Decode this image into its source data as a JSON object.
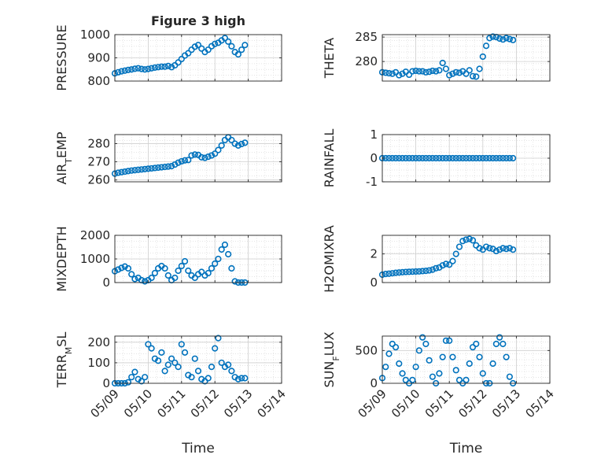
{
  "figure_title": "Figure 3 high",
  "x_axis": {
    "tick_labels": [
      "05/09",
      "05/10",
      "05/11",
      "05/12",
      "05/13",
      "05/14"
    ],
    "label": "Time"
  },
  "marker_color": "#0072BD",
  "chart_data": [
    {
      "type": "scatter",
      "id": "pressure",
      "title": "Figure 3 high",
      "ylabel": "PRESSURE",
      "ylabel_sub": "",
      "ylabel_tail": "",
      "xlim": [
        0,
        5
      ],
      "ylim": [
        800,
        1000
      ],
      "yticks": [
        800,
        900,
        1000
      ],
      "ytick_labels": [
        "800",
        "900",
        "1000"
      ],
      "grid": true,
      "series": [
        {
          "x": [
            0,
            0.1,
            0.2,
            0.3,
            0.4,
            0.5,
            0.6,
            0.7,
            0.8,
            0.9,
            1.0,
            1.1,
            1.2,
            1.3,
            1.4,
            1.5,
            1.6,
            1.7,
            1.8,
            1.9,
            2.0,
            2.1,
            2.2,
            2.3,
            2.4,
            2.5,
            2.6,
            2.7,
            2.8,
            2.9,
            3.0,
            3.1,
            3.2,
            3.3,
            3.4,
            3.5,
            3.6,
            3.7,
            3.8,
            3.9
          ],
          "y": [
            833,
            838,
            842,
            845,
            848,
            850,
            853,
            855,
            852,
            850,
            852,
            855,
            858,
            860,
            862,
            862,
            865,
            860,
            868,
            880,
            895,
            910,
            920,
            935,
            948,
            955,
            940,
            925,
            935,
            950,
            960,
            965,
            975,
            985,
            970,
            950,
            925,
            915,
            935,
            955
          ]
        }
      ]
    },
    {
      "type": "scatter",
      "id": "theta",
      "title": "",
      "ylabel": "THETA",
      "ylabel_sub": "",
      "ylabel_tail": "",
      "xlim": [
        0,
        5
      ],
      "ylim": [
        276,
        285.5
      ],
      "yticks": [
        280,
        285
      ],
      "ytick_labels": [
        "280",
        "285"
      ],
      "grid": true,
      "series": [
        {
          "x": [
            0,
            0.1,
            0.2,
            0.3,
            0.4,
            0.5,
            0.6,
            0.7,
            0.8,
            0.9,
            1.0,
            1.1,
            1.2,
            1.3,
            1.4,
            1.5,
            1.6,
            1.7,
            1.8,
            1.9,
            2.0,
            2.1,
            2.2,
            2.3,
            2.4,
            2.5,
            2.6,
            2.7,
            2.8,
            2.9,
            3.0,
            3.1,
            3.2,
            3.3,
            3.4,
            3.5,
            3.6,
            3.7,
            3.8,
            3.9
          ],
          "y": [
            277.8,
            277.7,
            277.6,
            277.5,
            277.8,
            277.2,
            277.5,
            277.9,
            277.3,
            278.0,
            278.1,
            278.0,
            278.0,
            277.8,
            277.9,
            278.1,
            278.0,
            278.2,
            279.7,
            278.5,
            277.2,
            277.5,
            277.8,
            277.7,
            278.0,
            277.5,
            278.2,
            277.0,
            276.9,
            278.5,
            281.0,
            283.2,
            284.8,
            285.1,
            285.0,
            284.7,
            284.5,
            284.8,
            284.6,
            284.4
          ]
        }
      ]
    },
    {
      "type": "scatter",
      "id": "air_temp",
      "title": "",
      "ylabel": "AIR",
      "ylabel_sub": "T",
      "ylabel_tail": "EMP",
      "xlim": [
        0,
        5
      ],
      "ylim": [
        259,
        285
      ],
      "yticks": [
        260,
        270,
        280
      ],
      "ytick_labels": [
        "260",
        "270",
        "280"
      ],
      "grid": true,
      "series": [
        {
          "x": [
            0,
            0.1,
            0.2,
            0.3,
            0.4,
            0.5,
            0.6,
            0.7,
            0.8,
            0.9,
            1.0,
            1.1,
            1.2,
            1.3,
            1.4,
            1.5,
            1.6,
            1.7,
            1.8,
            1.9,
            2.0,
            2.1,
            2.2,
            2.3,
            2.4,
            2.5,
            2.6,
            2.7,
            2.8,
            2.9,
            3.0,
            3.1,
            3.2,
            3.3,
            3.4,
            3.5,
            3.6,
            3.7,
            3.8,
            3.9
          ],
          "y": [
            263.5,
            264.0,
            264.3,
            264.6,
            264.9,
            265.2,
            265.4,
            265.6,
            265.8,
            266.0,
            266.2,
            266.4,
            266.6,
            266.8,
            267.0,
            267.2,
            267.4,
            267.6,
            268.5,
            269.5,
            270.3,
            270.8,
            271.0,
            273.5,
            274.0,
            273.8,
            272.5,
            272.2,
            272.8,
            273.5,
            274.5,
            276.5,
            279.0,
            282.0,
            283.5,
            282.0,
            280.0,
            279.0,
            279.8,
            280.5
          ]
        }
      ]
    },
    {
      "type": "scatter",
      "id": "rainfall",
      "title": "",
      "ylabel": "RAINFALL",
      "ylabel_sub": "",
      "ylabel_tail": "",
      "xlim": [
        0,
        5
      ],
      "ylim": [
        -1,
        1
      ],
      "yticks": [
        -1,
        0,
        1
      ],
      "ytick_labels": [
        "-1",
        "0",
        "1"
      ],
      "grid": true,
      "series": [
        {
          "x": [
            0,
            0.1,
            0.2,
            0.3,
            0.4,
            0.5,
            0.6,
            0.7,
            0.8,
            0.9,
            1.0,
            1.1,
            1.2,
            1.3,
            1.4,
            1.5,
            1.6,
            1.7,
            1.8,
            1.9,
            2.0,
            2.1,
            2.2,
            2.3,
            2.4,
            2.5,
            2.6,
            2.7,
            2.8,
            2.9,
            3.0,
            3.1,
            3.2,
            3.3,
            3.4,
            3.5,
            3.6,
            3.7,
            3.8,
            3.9
          ],
          "y": [
            0,
            0,
            0,
            0,
            0,
            0,
            0,
            0,
            0,
            0,
            0,
            0,
            0,
            0,
            0,
            0,
            0,
            0,
            0,
            0,
            0,
            0,
            0,
            0,
            0,
            0,
            0,
            0,
            0,
            0,
            0,
            0,
            0,
            0,
            0,
            0,
            0,
            0,
            0,
            0
          ]
        }
      ]
    },
    {
      "type": "scatter",
      "id": "mixdepth",
      "title": "",
      "ylabel": "MIXDEPTH",
      "ylabel_sub": "",
      "ylabel_tail": "",
      "xlim": [
        0,
        5
      ],
      "ylim": [
        0,
        2000
      ],
      "yticks": [
        0,
        1000,
        2000
      ],
      "ytick_labels": [
        "0",
        "1000",
        "2000"
      ],
      "grid": true,
      "series": [
        {
          "x": [
            0,
            0.1,
            0.2,
            0.3,
            0.4,
            0.5,
            0.6,
            0.7,
            0.8,
            0.9,
            1.0,
            1.1,
            1.2,
            1.3,
            1.4,
            1.5,
            1.6,
            1.7,
            1.8,
            1.9,
            2.0,
            2.1,
            2.2,
            2.3,
            2.4,
            2.5,
            2.6,
            2.7,
            2.8,
            2.9,
            3.0,
            3.1,
            3.2,
            3.3,
            3.4,
            3.5,
            3.6,
            3.7,
            3.8,
            3.9
          ],
          "y": [
            480,
            550,
            620,
            680,
            600,
            350,
            150,
            200,
            100,
            50,
            100,
            200,
            400,
            600,
            700,
            600,
            300,
            100,
            200,
            500,
            700,
            900,
            500,
            300,
            200,
            350,
            450,
            300,
            400,
            600,
            800,
            1000,
            1400,
            1600,
            1200,
            600,
            50,
            0,
            0,
            0
          ]
        }
      ]
    },
    {
      "type": "scatter",
      "id": "h2omixra",
      "title": "",
      "ylabel": "H2OMIXRA",
      "ylabel_sub": "",
      "ylabel_tail": "",
      "xlim": [
        0,
        5
      ],
      "ylim": [
        0,
        3.3
      ],
      "yticks": [
        0,
        2
      ],
      "ytick_labels": [
        "0",
        "2"
      ],
      "grid": true,
      "series": [
        {
          "x": [
            0,
            0.1,
            0.2,
            0.3,
            0.4,
            0.5,
            0.6,
            0.7,
            0.8,
            0.9,
            1.0,
            1.1,
            1.2,
            1.3,
            1.4,
            1.5,
            1.6,
            1.7,
            1.8,
            1.9,
            2.0,
            2.1,
            2.2,
            2.3,
            2.4,
            2.5,
            2.6,
            2.7,
            2.8,
            2.9,
            3.0,
            3.1,
            3.2,
            3.3,
            3.4,
            3.5,
            3.6,
            3.7,
            3.8,
            3.9
          ],
          "y": [
            0.55,
            0.6,
            0.62,
            0.65,
            0.68,
            0.7,
            0.72,
            0.74,
            0.75,
            0.76,
            0.77,
            0.78,
            0.8,
            0.82,
            0.85,
            0.9,
            1.0,
            1.05,
            1.2,
            1.3,
            1.25,
            1.5,
            2.0,
            2.5,
            2.9,
            3.0,
            3.05,
            2.95,
            2.6,
            2.4,
            2.3,
            2.5,
            2.4,
            2.35,
            2.2,
            2.3,
            2.4,
            2.35,
            2.4,
            2.3
          ]
        }
      ]
    },
    {
      "type": "scatter",
      "id": "terr_msl",
      "title": "",
      "ylabel": "TERR",
      "ylabel_sub": "M",
      "ylabel_tail": "SL",
      "xlim": [
        0,
        5
      ],
      "ylim": [
        0,
        230
      ],
      "yticks": [
        0,
        100,
        200
      ],
      "ytick_labels": [
        "0",
        "100",
        "200"
      ],
      "grid": true,
      "series": [
        {
          "x": [
            0,
            0.1,
            0.2,
            0.3,
            0.4,
            0.5,
            0.6,
            0.7,
            0.8,
            0.9,
            1.0,
            1.1,
            1.2,
            1.3,
            1.4,
            1.5,
            1.6,
            1.7,
            1.8,
            1.9,
            2.0,
            2.1,
            2.2,
            2.3,
            2.4,
            2.5,
            2.6,
            2.7,
            2.8,
            2.9,
            3.0,
            3.1,
            3.2,
            3.3,
            3.4,
            3.5,
            3.6,
            3.7,
            3.8,
            3.9
          ],
          "y": [
            0,
            0,
            0,
            0,
            5,
            30,
            55,
            20,
            10,
            30,
            190,
            170,
            120,
            110,
            150,
            60,
            90,
            120,
            100,
            80,
            190,
            150,
            40,
            30,
            120,
            60,
            20,
            10,
            25,
            80,
            170,
            220,
            100,
            80,
            90,
            60,
            30,
            20,
            25,
            25
          ]
        }
      ]
    },
    {
      "type": "scatter",
      "id": "sun_flux",
      "title": "",
      "ylabel": "SUN",
      "ylabel_sub": "F",
      "ylabel_tail": "LUX",
      "xlim": [
        0,
        5
      ],
      "ylim": [
        0,
        720
      ],
      "yticks": [
        0,
        500
      ],
      "ytick_labels": [
        "0",
        "500"
      ],
      "grid": true,
      "series": [
        {
          "x": [
            0,
            0.1,
            0.2,
            0.3,
            0.4,
            0.5,
            0.6,
            0.7,
            0.8,
            0.9,
            1.0,
            1.1,
            1.2,
            1.3,
            1.4,
            1.5,
            1.6,
            1.7,
            1.8,
            1.9,
            2.0,
            2.1,
            2.2,
            2.3,
            2.4,
            2.5,
            2.6,
            2.7,
            2.8,
            2.9,
            3.0,
            3.1,
            3.2,
            3.3,
            3.4,
            3.5,
            3.6,
            3.7,
            3.8,
            3.9
          ],
          "y": [
            80,
            250,
            450,
            600,
            550,
            300,
            150,
            50,
            0,
            50,
            250,
            500,
            700,
            600,
            350,
            100,
            0,
            150,
            400,
            650,
            650,
            400,
            200,
            50,
            0,
            50,
            300,
            550,
            600,
            400,
            150,
            0,
            0,
            300,
            600,
            700,
            600,
            400,
            100,
            0
          ]
        }
      ]
    }
  ]
}
